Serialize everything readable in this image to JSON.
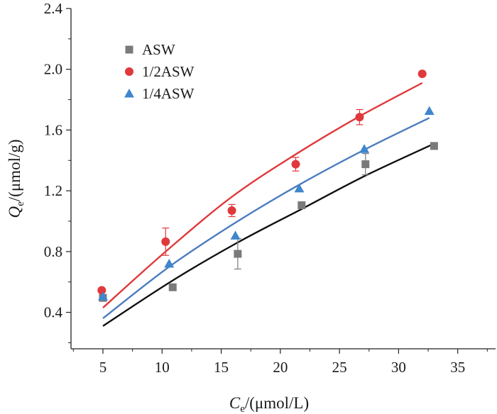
{
  "chart_data": {
    "type": "scatter",
    "xlabel": {
      "main": "C",
      "sub": "e",
      "rest": "/(μmol/L)"
    },
    "ylabel": {
      "main": "Q",
      "sub": "e",
      "rest": "/(μmol/g)"
    },
    "xlim": [
      2.3,
      38.2
    ],
    "ylim": [
      0.16,
      2.4
    ],
    "xticks": [
      5,
      10,
      15,
      20,
      25,
      30,
      35
    ],
    "yticks": [
      0.4,
      0.8,
      1.2,
      1.6,
      2.0,
      2.4
    ],
    "ytick_labels": [
      "0.4",
      "0.8",
      "1.2",
      "1.6",
      "2.0",
      "2.4"
    ],
    "legend_position": "top-left",
    "series": [
      {
        "name": "ASW",
        "marker": "square",
        "color": "#7a7a7a",
        "line_color": "#111111",
        "x": [
          5.0,
          10.9,
          16.4,
          21.8,
          27.2,
          33.0
        ],
        "y": [
          0.495,
          0.565,
          0.785,
          1.105,
          1.375,
          1.495
        ],
        "err": [
          0,
          0,
          0.1,
          0,
          0.07,
          0
        ],
        "fit": [
          [
            5.0,
            0.31
          ],
          [
            10.9,
            0.61
          ],
          [
            16.4,
            0.86
          ],
          [
            21.8,
            1.08
          ],
          [
            27.2,
            1.3
          ],
          [
            33.0,
            1.51
          ]
        ]
      },
      {
        "name": "1/2ASW",
        "marker": "circle",
        "color": "#e0393c",
        "line_color": "#e0393c",
        "x": [
          4.9,
          10.3,
          15.9,
          21.3,
          26.7,
          32.0
        ],
        "y": [
          0.545,
          0.865,
          1.07,
          1.375,
          1.685,
          1.97
        ],
        "err": [
          0,
          0.09,
          0.04,
          0.045,
          0.05,
          0
        ],
        "fit": [
          [
            5.0,
            0.43
          ],
          [
            10.3,
            0.8
          ],
          [
            15.9,
            1.16
          ],
          [
            21.3,
            1.44
          ],
          [
            26.7,
            1.69
          ],
          [
            32.0,
            1.91
          ]
        ]
      },
      {
        "name": "1/4ASW",
        "marker": "triangle",
        "color": "#3f86cc",
        "line_color": "#4a7cbf",
        "x": [
          5.0,
          10.6,
          16.2,
          21.6,
          27.1,
          32.6
        ],
        "y": [
          0.505,
          0.72,
          0.905,
          1.215,
          1.475,
          1.725
        ],
        "err": [
          0,
          0,
          0,
          0,
          0,
          0
        ],
        "fit": [
          [
            5.0,
            0.36
          ],
          [
            10.6,
            0.7
          ],
          [
            16.2,
            0.99
          ],
          [
            21.6,
            1.24
          ],
          [
            27.1,
            1.47
          ],
          [
            32.6,
            1.68
          ]
        ]
      }
    ]
  }
}
